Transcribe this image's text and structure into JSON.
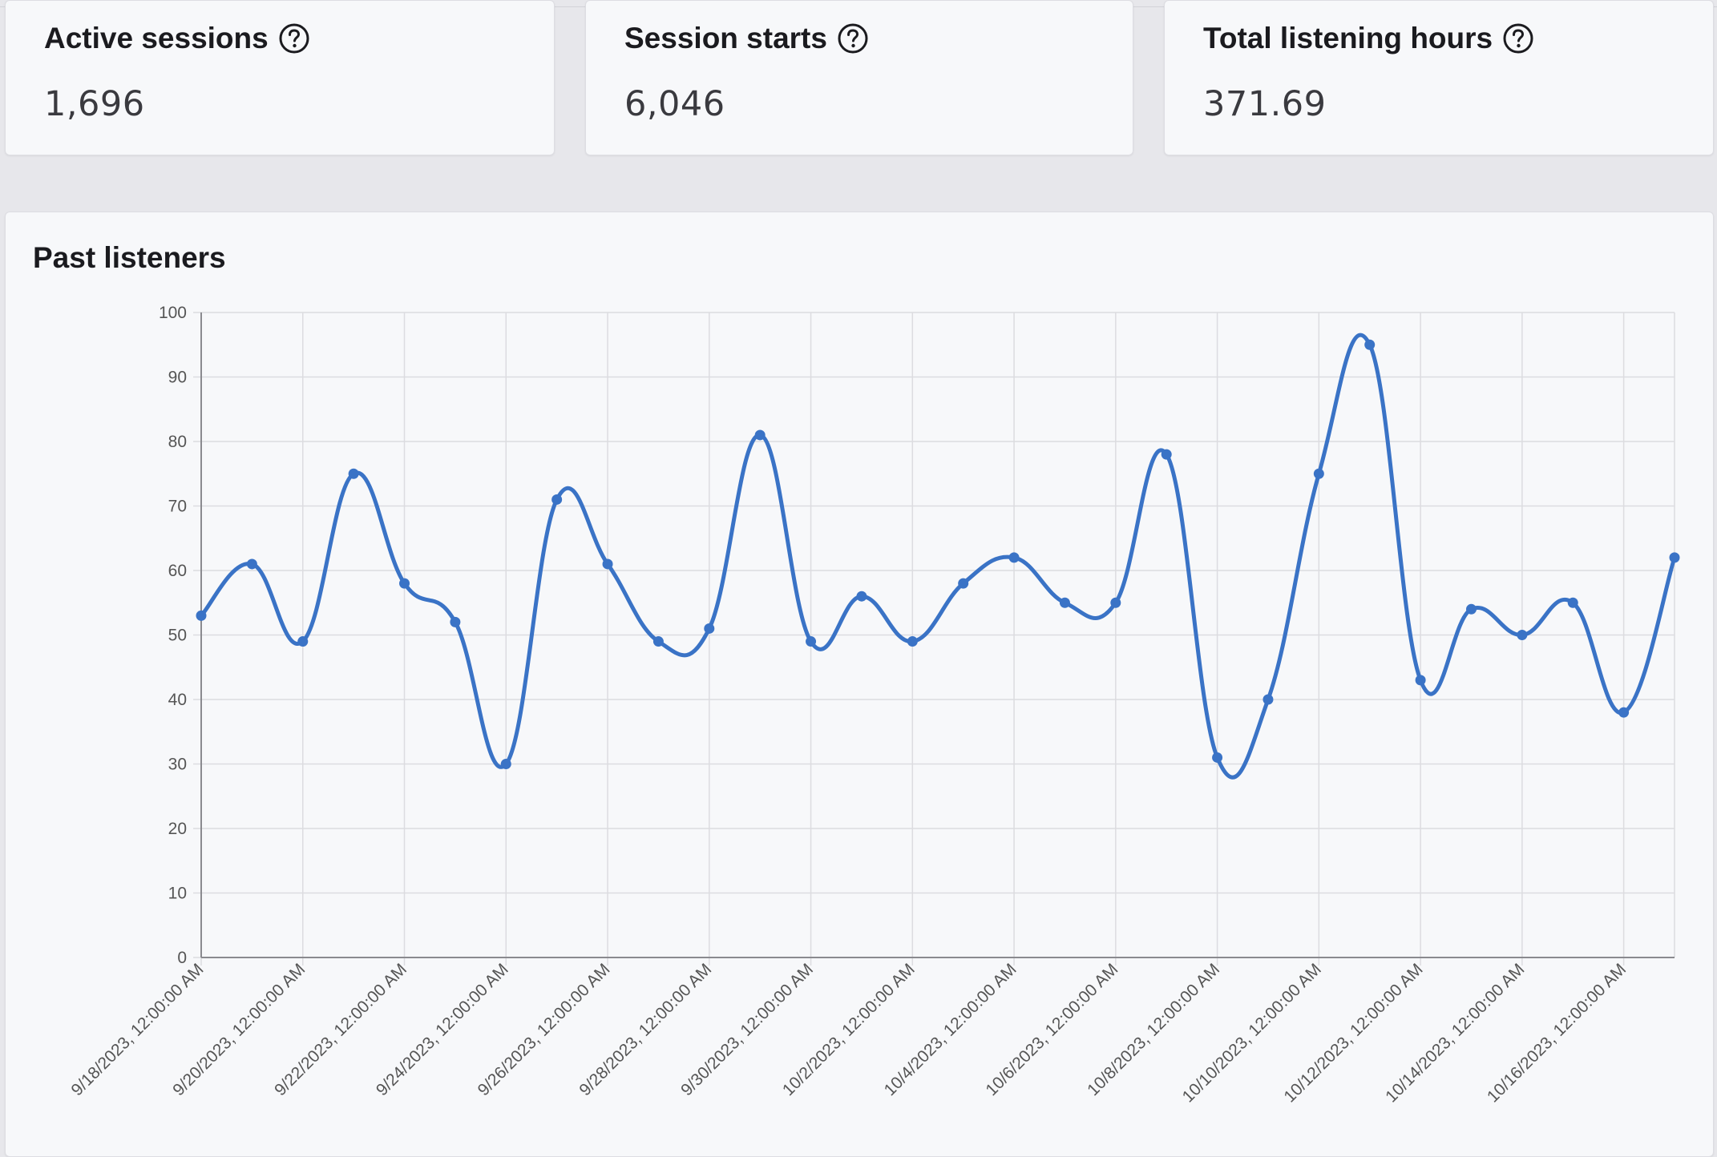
{
  "stats": {
    "active_sessions": {
      "label": "Active sessions",
      "value": "1,696"
    },
    "session_starts": {
      "label": "Session starts",
      "value": "6,046"
    },
    "total_listening_hours": {
      "label": "Total listening hours",
      "value": "371.69"
    }
  },
  "icons": {
    "help": "question-circle-icon"
  },
  "colors": {
    "series": "#3a73c6",
    "grid": "#dcdce0",
    "axis": "#555555"
  },
  "chart": {
    "title": "Past listeners"
  },
  "chart_data": {
    "type": "line",
    "title": "Past listeners",
    "xlabel": "",
    "ylabel": "",
    "ylim": [
      0,
      100
    ],
    "y_ticks": [
      0,
      10,
      20,
      30,
      40,
      50,
      60,
      70,
      80,
      90,
      100
    ],
    "x_tick_labels": [
      "9/18/2023, 12:00:00 AM",
      "9/20/2023, 12:00:00 AM",
      "9/22/2023, 12:00:00 AM",
      "9/24/2023, 12:00:00 AM",
      "9/26/2023, 12:00:00 AM",
      "9/28/2023, 12:00:00 AM",
      "9/30/2023, 12:00:00 AM",
      "10/2/2023, 12:00:00 AM",
      "10/4/2023, 12:00:00 AM",
      "10/6/2023, 12:00:00 AM",
      "10/8/2023, 12:00:00 AM",
      "10/10/2023, 12:00:00 AM",
      "10/12/2023, 12:00:00 AM",
      "10/14/2023, 12:00:00 AM",
      "10/16/2023, 12:00:00 AM"
    ],
    "x": [
      "9/18/2023",
      "9/19/2023",
      "9/20/2023",
      "9/21/2023",
      "9/22/2023",
      "9/23/2023",
      "9/24/2023",
      "9/25/2023",
      "9/26/2023",
      "9/27/2023",
      "9/28/2023",
      "9/29/2023",
      "9/30/2023",
      "10/1/2023",
      "10/2/2023",
      "10/3/2023",
      "10/4/2023",
      "10/5/2023",
      "10/6/2023",
      "10/7/2023",
      "10/8/2023",
      "10/9/2023",
      "10/10/2023",
      "10/11/2023",
      "10/12/2023",
      "10/13/2023",
      "10/14/2023",
      "10/15/2023",
      "10/16/2023",
      "10/17/2023"
    ],
    "series": [
      {
        "values": [
          53,
          61,
          49,
          75,
          58,
          52,
          30,
          71,
          61,
          49,
          51,
          81,
          49,
          56,
          49,
          58,
          62,
          55,
          55,
          78,
          31,
          40,
          75,
          95,
          43,
          54,
          50,
          55,
          38,
          62
        ]
      }
    ],
    "grid": true,
    "legend": "none"
  }
}
